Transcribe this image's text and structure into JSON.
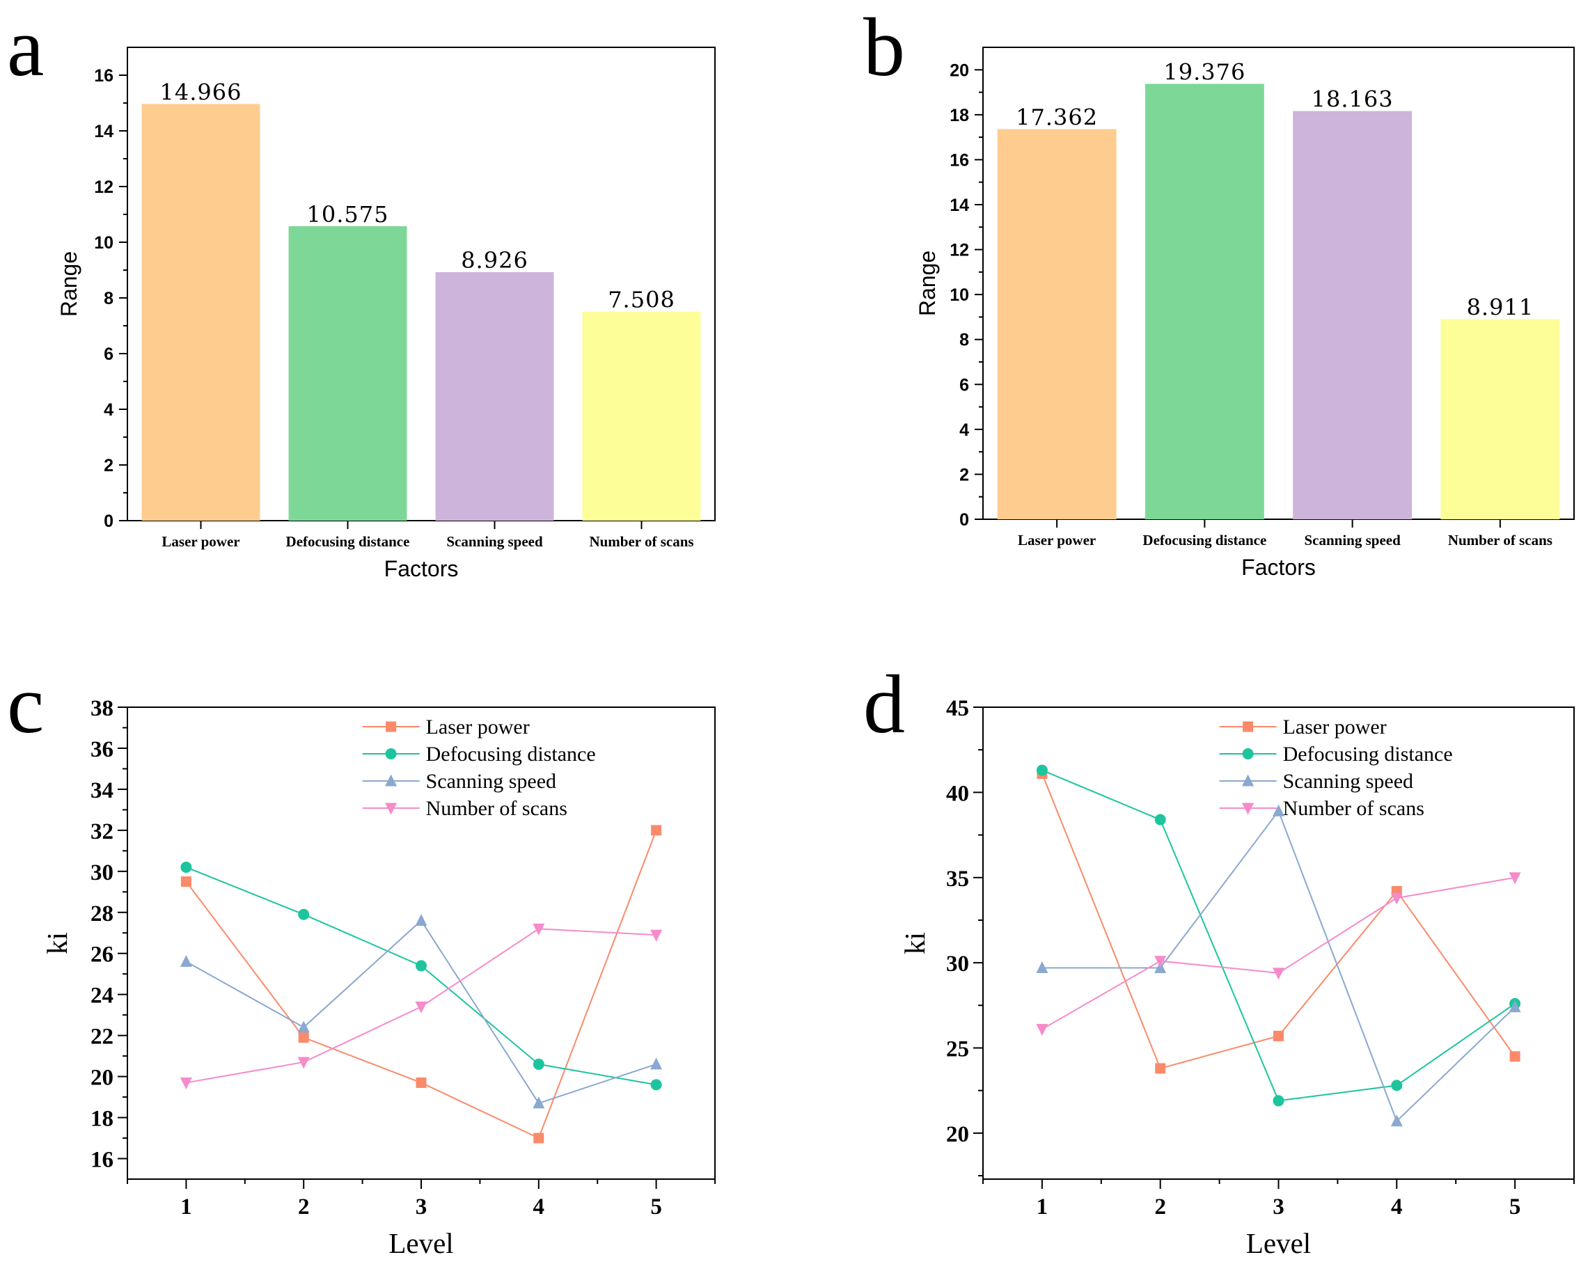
{
  "figure": {
    "panel_labels": [
      "a",
      "b",
      "c",
      "d"
    ]
  },
  "colors": {
    "laser_power": "#FECC8F",
    "defocusing_distance": "#7DD897",
    "scanning_speed": "#CDB4DA",
    "number_of_scans": "#FEFE99",
    "line_laser_power": "#FA8A6A",
    "line_defocusing_distance": "#1CC59E",
    "line_scanning_speed": "#8AA8D0",
    "line_number_of_scans": "#F58BCB"
  },
  "chart_data": [
    {
      "panel": "a",
      "type": "bar",
      "categories": [
        "Laser power",
        "Defocusing distance",
        "Scanning speed",
        "Number of scans"
      ],
      "values": [
        14.966,
        10.575,
        8.926,
        7.508
      ],
      "value_labels": [
        "14.966",
        "10.575",
        "8.926",
        "7.508"
      ],
      "xlabel": "Factors",
      "ylabel": "Range",
      "ylim": [
        0,
        17
      ],
      "yticks": [
        0,
        2,
        4,
        6,
        8,
        10,
        12,
        14,
        16
      ],
      "grid": false
    },
    {
      "panel": "b",
      "type": "bar",
      "categories": [
        "Laser power",
        "Defocusing distance",
        "Scanning speed",
        "Number of scans"
      ],
      "values": [
        17.362,
        19.376,
        18.163,
        8.911
      ],
      "value_labels": [
        "17.362",
        "19.376",
        "18.163",
        "8.911"
      ],
      "xlabel": "Factors",
      "ylabel": "Range",
      "ylim": [
        0,
        21
      ],
      "yticks": [
        0,
        2,
        4,
        6,
        8,
        10,
        12,
        14,
        16,
        18,
        20
      ],
      "grid": false
    },
    {
      "panel": "c",
      "type": "line",
      "x": [
        1,
        2,
        3,
        4,
        5
      ],
      "series": [
        {
          "name": "Laser power",
          "marker": "square",
          "values": [
            29.5,
            21.9,
            19.7,
            17.0,
            32.0
          ]
        },
        {
          "name": "Defocusing distance",
          "marker": "circle",
          "values": [
            30.2,
            27.9,
            25.4,
            20.6,
            19.6
          ]
        },
        {
          "name": "Scanning speed",
          "marker": "triangle-up",
          "values": [
            25.6,
            22.4,
            27.6,
            18.7,
            20.6
          ]
        },
        {
          "name": "Number of scans",
          "marker": "triangle-down",
          "values": [
            19.7,
            20.7,
            23.4,
            27.2,
            26.9
          ]
        }
      ],
      "xlabel": "Level",
      "ylabel": "ki",
      "xlim": [
        0.5,
        5.5
      ],
      "ylim": [
        15,
        38
      ],
      "yticks": [
        16,
        18,
        20,
        22,
        24,
        26,
        28,
        30,
        32,
        34,
        36,
        38
      ],
      "xticks": [
        1,
        2,
        3,
        4,
        5
      ],
      "legend": "top-right",
      "grid": false
    },
    {
      "panel": "d",
      "type": "line",
      "x": [
        1,
        2,
        3,
        4,
        5
      ],
      "series": [
        {
          "name": "Laser power",
          "marker": "square",
          "values": [
            41.1,
            23.8,
            25.7,
            34.2,
            24.5
          ]
        },
        {
          "name": "Defocusing distance",
          "marker": "circle",
          "values": [
            41.3,
            38.4,
            21.9,
            22.8,
            27.6
          ]
        },
        {
          "name": "Scanning speed",
          "marker": "triangle-up",
          "values": [
            29.7,
            29.7,
            38.9,
            20.7,
            27.4
          ]
        },
        {
          "name": "Number of scans",
          "marker": "triangle-down",
          "values": [
            26.1,
            30.1,
            29.4,
            33.8,
            35.0
          ]
        }
      ],
      "xlabel": "Level",
      "ylabel": "ki",
      "xlim": [
        0.5,
        5.5
      ],
      "ylim": [
        17.3,
        45
      ],
      "yticks": [
        20,
        25,
        30,
        35,
        40,
        45
      ],
      "xticks": [
        1,
        2,
        3,
        4,
        5
      ],
      "legend": "top-right",
      "grid": false
    }
  ]
}
